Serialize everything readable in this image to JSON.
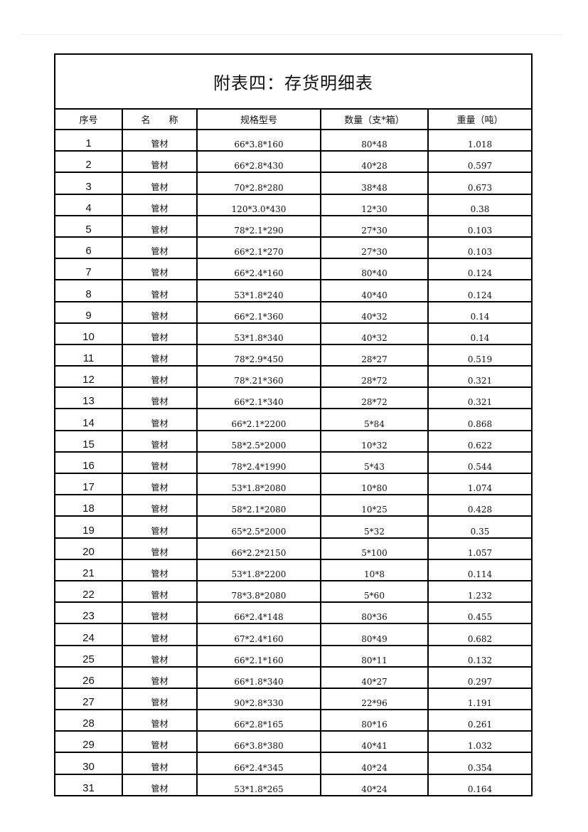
{
  "title": "附表四：存货明细表",
  "columns": [
    "序号",
    "名　　称",
    "规格型号",
    "数量（支*箱）",
    "重量（吨）"
  ],
  "rows": [
    [
      "1",
      "管材",
      "66*3.8*160",
      "80*48",
      "1.018"
    ],
    [
      "2",
      "管材",
      "66*2.8*430",
      "40*28",
      "0.597"
    ],
    [
      "3",
      "管材",
      "70*2.8*280",
      "38*48",
      "0.673"
    ],
    [
      "4",
      "管材",
      "120*3.0*430",
      "12*30",
      "0.38"
    ],
    [
      "5",
      "管材",
      "78*2.1*290",
      "27*30",
      "0.103"
    ],
    [
      "6",
      "管材",
      "66*2.1*270",
      "27*30",
      "0.103"
    ],
    [
      "7",
      "管材",
      "66*2.4*160",
      "80*40",
      "0.124"
    ],
    [
      "8",
      "管材",
      "53*1.8*240",
      "40*40",
      "0.124"
    ],
    [
      "9",
      "管材",
      "66*2.1*360",
      "40*32",
      "0.14"
    ],
    [
      "10",
      "管材",
      "53*1.8*340",
      "40*32",
      "0.14"
    ],
    [
      "11",
      "管材",
      "78*2.9*450",
      "28*27",
      "0.519"
    ],
    [
      "12",
      "管材",
      "78*.21*360",
      "28*72",
      "0.321"
    ],
    [
      "13",
      "管材",
      "66*2.1*340",
      "28*72",
      "0.321"
    ],
    [
      "14",
      "管材",
      "66*2.1*2200",
      "5*84",
      "0.868"
    ],
    [
      "15",
      "管材",
      "58*2.5*2000",
      "10*32",
      "0.622"
    ],
    [
      "16",
      "管材",
      "78*2.4*1990",
      "5*43",
      "0.544"
    ],
    [
      "17",
      "管材",
      "53*1.8*2080",
      "10*80",
      "1.074"
    ],
    [
      "18",
      "管材",
      "58*2.1*2080",
      "10*25",
      "0.428"
    ],
    [
      "19",
      "管材",
      "65*2.5*2000",
      "5*32",
      "0.35"
    ],
    [
      "20",
      "管材",
      "66*2.2*2150",
      "5*100",
      "1.057"
    ],
    [
      "21",
      "管材",
      "53*1.8*2200",
      "10*8",
      "0.114"
    ],
    [
      "22",
      "管材",
      "78*3.8*2080",
      "5*60",
      "1.232"
    ],
    [
      "23",
      "管材",
      "66*2.4*148",
      "80*36",
      "0.455"
    ],
    [
      "24",
      "管材",
      "67*2.4*160",
      "80*49",
      "0.682"
    ],
    [
      "25",
      "管材",
      "66*2.1*160",
      "80*11",
      "0.132"
    ],
    [
      "26",
      "管材",
      "66*1.8*340",
      "40*27",
      "0.297"
    ],
    [
      "27",
      "管材",
      "90*2.8*330",
      "22*96",
      "1.191"
    ],
    [
      "28",
      "管材",
      "66*2.8*165",
      "80*16",
      "0.261"
    ],
    [
      "29",
      "管材",
      "66*3.8*380",
      "40*41",
      "1.032"
    ],
    [
      "30",
      "管材",
      "66*2.4*345",
      "40*24",
      "0.354"
    ],
    [
      "31",
      "管材",
      "53*1.8*265",
      "40*24",
      "0.164"
    ]
  ]
}
